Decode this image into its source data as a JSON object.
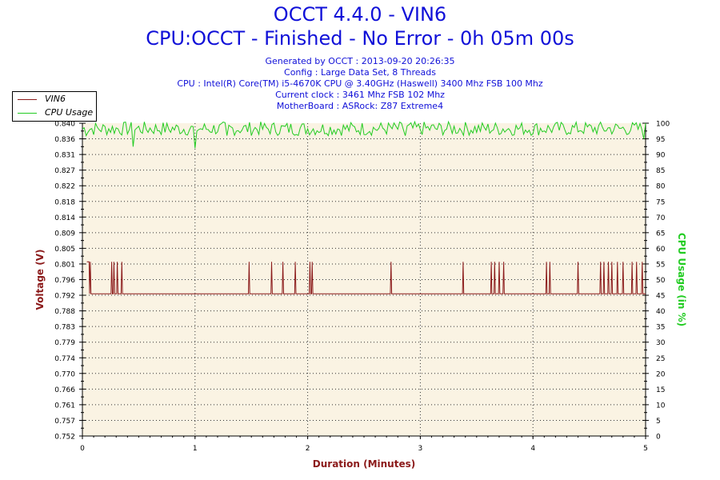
{
  "title": "OCCT 4.4.0 - VIN6",
  "subtitle": "CPU:OCCT - Finished - No Error - 0h 05m 00s",
  "info_lines": [
    "Generated by OCCT : 2013-09-20 20:26:35",
    "Config : Large Data Set, 8 Threads",
    "CPU : Intel(R) Core(TM) i5-4670K CPU @ 3.40GHz (Haswell) 3400 Mhz FSB 100 Mhz",
    "Current clock : 3461 Mhz FSB 102 Mhz",
    "MotherBoard : ASRock: Z87 Extreme4"
  ],
  "colors": {
    "voltage": "#8b1a1a",
    "cpu": "#22cc22",
    "title": "#1010d8",
    "plot_bg": "#faf3e3"
  },
  "chart_data": {
    "type": "line",
    "xlabel": "Duration (Minutes)",
    "ylabel_left": "Voltage (V)",
    "ylabel_right": "CPU Usage (in %)",
    "xlim": [
      0,
      5
    ],
    "ylim_left": [
      0.752,
      0.84
    ],
    "ylim_right": [
      0,
      100
    ],
    "x_ticks": [
      "0",
      "1",
      "2",
      "3",
      "4",
      "5"
    ],
    "y_left_ticks": [
      "0.752",
      "0.757",
      "0.761",
      "0.766",
      "0.770",
      "0.774",
      "0.779",
      "0.783",
      "0.788",
      "0.792",
      "0.796",
      "0.801",
      "0.805",
      "0.809",
      "0.814",
      "0.818",
      "0.822",
      "0.827",
      "0.831",
      "0.836",
      "0.840"
    ],
    "y_right_ticks": [
      "0",
      "5",
      "10",
      "15",
      "20",
      "25",
      "30",
      "35",
      "40",
      "45",
      "50",
      "55",
      "60",
      "65",
      "70",
      "75",
      "80",
      "85",
      "90",
      "95",
      "100"
    ],
    "grid": true,
    "legend": "top-left",
    "series": [
      {
        "name": "VIN6",
        "axis": "left",
        "baseline": 0.792,
        "spike_value": 0.801,
        "spike_x": [
          0.07,
          0.26,
          0.28,
          0.31,
          0.35,
          1.48,
          1.68,
          1.78,
          1.89,
          2.02,
          2.04,
          2.74,
          3.38,
          3.63,
          3.66,
          3.7,
          3.74,
          4.12,
          4.15,
          4.4,
          4.6,
          4.63,
          4.67,
          4.7,
          4.75,
          4.8,
          4.88,
          4.92,
          4.97
        ]
      },
      {
        "name": "CPU Usage",
        "axis": "right",
        "range": [
          95,
          100
        ],
        "dips": [
          [
            0.03,
            96
          ],
          [
            0.45,
            92.5
          ],
          [
            1.0,
            92
          ],
          [
            1.28,
            96
          ],
          [
            2.86,
            96
          ],
          [
            4.98,
            95
          ]
        ]
      }
    ]
  }
}
